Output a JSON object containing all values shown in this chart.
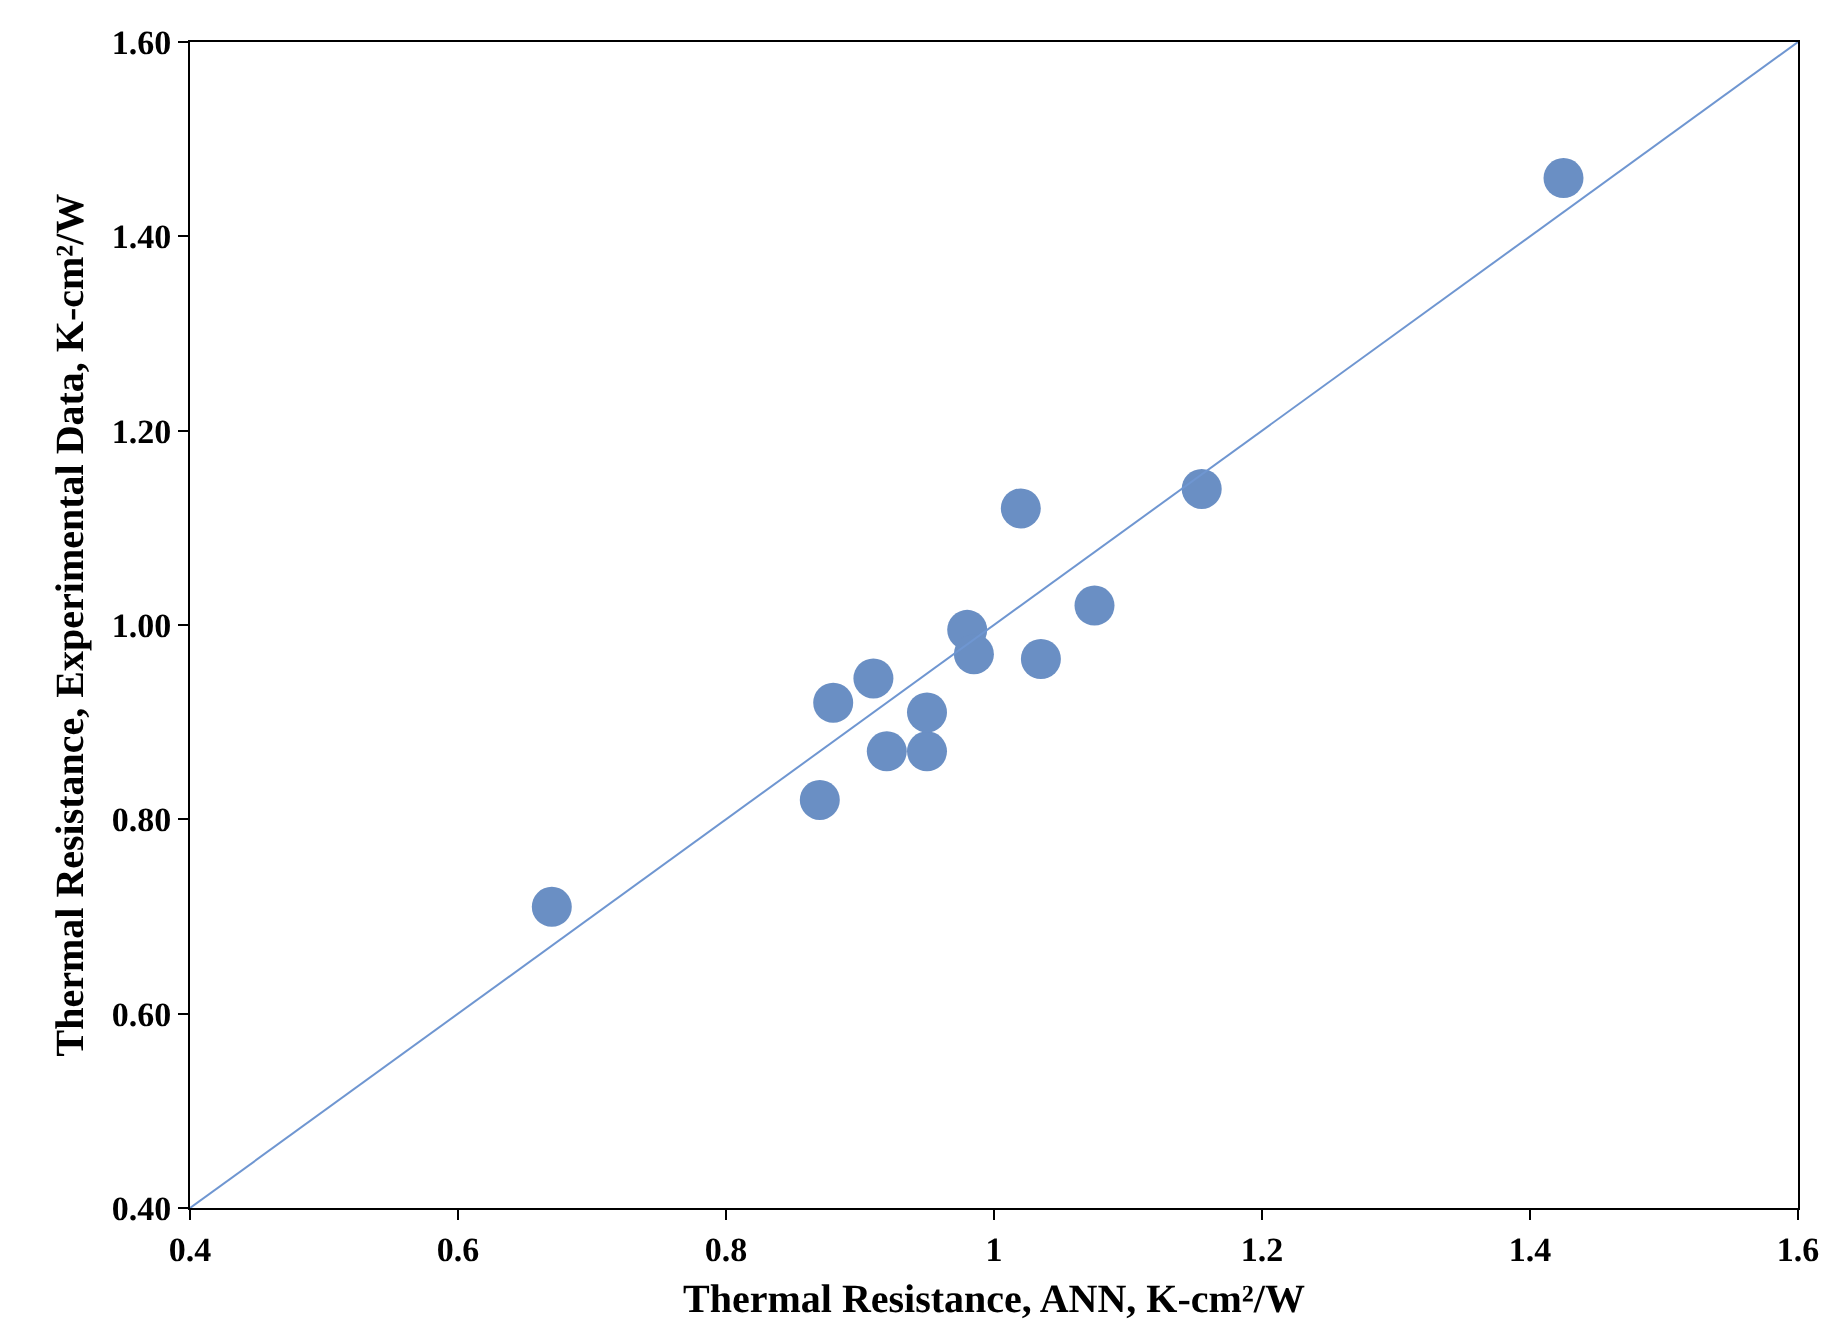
{
  "chart_data": {
    "type": "scatter",
    "xlabel": "Thermal Resistance, ANN, K-cm²/W",
    "ylabel": "Thermal Resistance, Experimental Data, K-cm²/W",
    "series": [
      {
        "type": "scatter",
        "color": "#6a8fc4",
        "marker": "circle",
        "x": [
          0.67,
          0.87,
          0.88,
          0.91,
          0.92,
          0.95,
          0.95,
          0.98,
          0.985,
          1.02,
          1.035,
          1.075,
          1.155,
          1.425
        ],
        "values": [
          0.71,
          0.82,
          0.92,
          0.945,
          0.87,
          0.87,
          0.91,
          0.995,
          0.97,
          1.12,
          0.965,
          1.02,
          1.14,
          1.46
        ]
      },
      {
        "type": "line",
        "color": "#6f96d1",
        "marker": "none",
        "line_style": "solid",
        "x": [
          0.4,
          1.6
        ],
        "values": [
          0.4,
          1.6
        ]
      }
    ],
    "xlim": [
      0.4,
      1.6
    ],
    "xticks": [
      0.4,
      0.6,
      0.8,
      1,
      1.2,
      1.4,
      1.6
    ],
    "ylim": [
      0.4,
      1.6
    ],
    "yticks": [
      {
        "value": 0.4,
        "label": "0.40"
      },
      {
        "value": 0.6,
        "label": "0.60"
      },
      {
        "value": 0.8,
        "label": "0.80"
      },
      {
        "value": 1.0,
        "label": "1.00"
      },
      {
        "value": 1.2,
        "label": "1.20"
      },
      {
        "value": 1.4,
        "label": "1.40"
      },
      {
        "value": 1.6,
        "label": "1.60"
      }
    ]
  }
}
